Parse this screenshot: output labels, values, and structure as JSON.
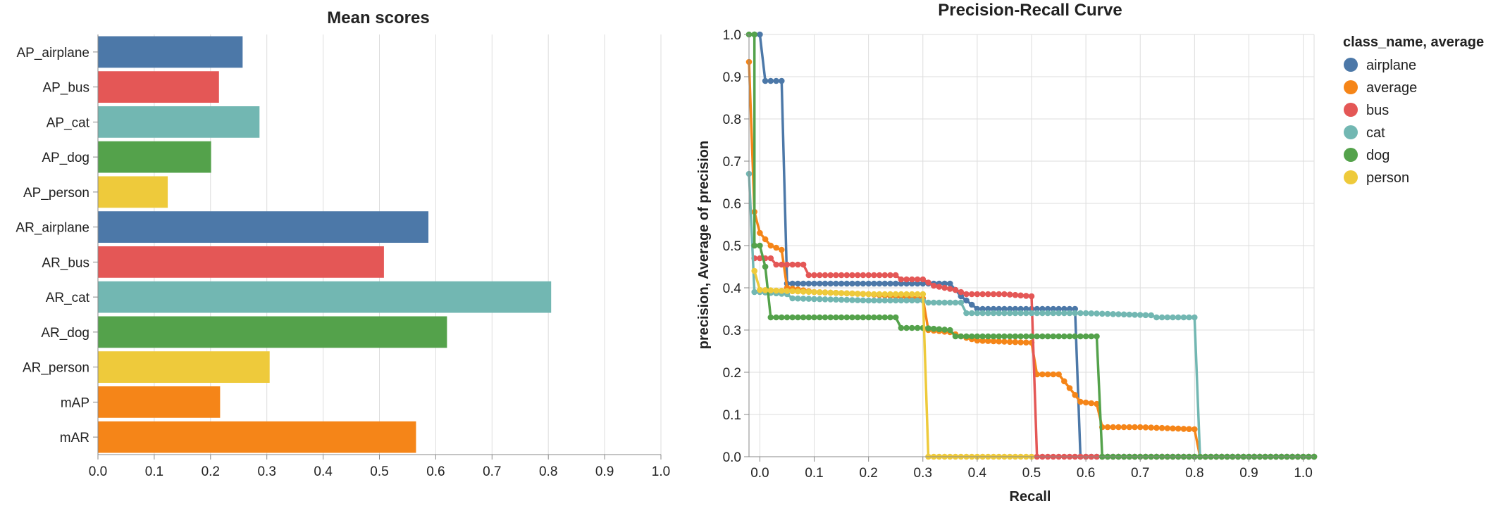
{
  "colors": {
    "airplane": "#4c78a8",
    "average": "#f58518",
    "bus": "#e45756",
    "cat": "#72b7b2",
    "dog": "#54a24b",
    "person": "#eeca3b",
    "grid": "#dddddd",
    "axis": "#888888"
  },
  "chart_data": [
    {
      "type": "bar",
      "orientation": "horizontal",
      "title": "Mean scores",
      "categories": [
        "AP_airplane",
        "AP_bus",
        "AP_cat",
        "AP_dog",
        "AP_person",
        "AR_airplane",
        "AR_bus",
        "AR_cat",
        "AR_dog",
        "AR_person",
        "mAP",
        "mAR"
      ],
      "values": [
        0.257,
        0.215,
        0.287,
        0.201,
        0.124,
        0.587,
        0.508,
        0.805,
        0.62,
        0.305,
        0.217,
        0.565
      ],
      "bar_colors": [
        "airplane",
        "bus",
        "cat",
        "dog",
        "person",
        "airplane",
        "bus",
        "cat",
        "dog",
        "person",
        "average",
        "average"
      ],
      "xlim": [
        0,
        1.0
      ],
      "xticks": [
        "0.0",
        "0.1",
        "0.2",
        "0.3",
        "0.4",
        "0.5",
        "0.6",
        "0.7",
        "0.8",
        "0.9",
        "1.0"
      ],
      "grid": true
    },
    {
      "type": "line",
      "title": "Precision-Recall Curve",
      "xlabel": "Recall",
      "ylabel": "precision, Average of precision",
      "xlim": [
        -0.02,
        1.02
      ],
      "ylim": [
        0,
        1.0
      ],
      "xticks": [
        "0.0",
        "0.1",
        "0.2",
        "0.3",
        "0.4",
        "0.5",
        "0.6",
        "0.7",
        "0.8",
        "0.9",
        "1.0"
      ],
      "yticks": [
        "0.0",
        "0.1",
        "0.2",
        "0.3",
        "0.4",
        "0.5",
        "0.6",
        "0.7",
        "0.8",
        "0.9",
        "1.0"
      ],
      "grid": true,
      "legend_title": "class_name, average",
      "legend_position": "top-right",
      "series": [
        {
          "name": "airplane",
          "color": "airplane",
          "points": [
            [
              -0.01,
              1.0
            ],
            [
              0.0,
              1.0
            ],
            [
              0.01,
              0.89
            ],
            [
              0.04,
              0.89
            ],
            [
              0.05,
              0.41
            ],
            [
              0.1,
              0.41
            ],
            [
              0.2,
              0.41
            ],
            [
              0.3,
              0.41
            ],
            [
              0.35,
              0.41
            ],
            [
              0.37,
              0.38
            ],
            [
              0.4,
              0.35
            ],
            [
              0.5,
              0.35
            ],
            [
              0.58,
              0.35
            ],
            [
              0.59,
              0.0
            ],
            [
              0.7,
              0.0
            ],
            [
              0.8,
              0.0
            ],
            [
              0.9,
              0.0
            ],
            [
              1.0,
              0.0
            ],
            [
              1.02,
              0.0
            ]
          ]
        },
        {
          "name": "average",
          "color": "average",
          "points": [
            [
              -0.02,
              0.935
            ],
            [
              -0.01,
              0.58
            ],
            [
              0.0,
              0.53
            ],
            [
              0.01,
              0.515
            ],
            [
              0.02,
              0.5
            ],
            [
              0.04,
              0.49
            ],
            [
              0.05,
              0.4
            ],
            [
              0.1,
              0.39
            ],
            [
              0.2,
              0.385
            ],
            [
              0.3,
              0.375
            ],
            [
              0.31,
              0.3
            ],
            [
              0.35,
              0.295
            ],
            [
              0.37,
              0.285
            ],
            [
              0.4,
              0.275
            ],
            [
              0.5,
              0.27
            ],
            [
              0.51,
              0.195
            ],
            [
              0.55,
              0.195
            ],
            [
              0.59,
              0.13
            ],
            [
              0.62,
              0.125
            ],
            [
              0.63,
              0.07
            ],
            [
              0.7,
              0.07
            ],
            [
              0.8,
              0.065
            ],
            [
              0.81,
              0.0
            ],
            [
              0.9,
              0.0
            ],
            [
              1.0,
              0.0
            ],
            [
              1.02,
              0.0
            ]
          ]
        },
        {
          "name": "bus",
          "color": "bus",
          "points": [
            [
              -0.01,
              0.47
            ],
            [
              0.0,
              0.47
            ],
            [
              0.02,
              0.47
            ],
            [
              0.03,
              0.455
            ],
            [
              0.08,
              0.455
            ],
            [
              0.09,
              0.43
            ],
            [
              0.2,
              0.43
            ],
            [
              0.25,
              0.43
            ],
            [
              0.26,
              0.42
            ],
            [
              0.3,
              0.42
            ],
            [
              0.32,
              0.405
            ],
            [
              0.36,
              0.395
            ],
            [
              0.38,
              0.385
            ],
            [
              0.45,
              0.385
            ],
            [
              0.5,
              0.38
            ],
            [
              0.51,
              0.0
            ],
            [
              0.6,
              0.0
            ],
            [
              0.7,
              0.0
            ],
            [
              0.8,
              0.0
            ],
            [
              0.9,
              0.0
            ],
            [
              1.0,
              0.0
            ],
            [
              1.02,
              0.0
            ]
          ]
        },
        {
          "name": "cat",
          "color": "cat",
          "points": [
            [
              -0.02,
              0.67
            ],
            [
              -0.01,
              0.39
            ],
            [
              0.0,
              0.39
            ],
            [
              0.05,
              0.385
            ],
            [
              0.06,
              0.375
            ],
            [
              0.2,
              0.37
            ],
            [
              0.3,
              0.37
            ],
            [
              0.31,
              0.365
            ],
            [
              0.37,
              0.365
            ],
            [
              0.38,
              0.34
            ],
            [
              0.5,
              0.34
            ],
            [
              0.6,
              0.34
            ],
            [
              0.72,
              0.335
            ],
            [
              0.73,
              0.33
            ],
            [
              0.8,
              0.33
            ],
            [
              0.81,
              0.0
            ],
            [
              0.9,
              0.0
            ],
            [
              1.0,
              0.0
            ],
            [
              1.02,
              0.0
            ]
          ]
        },
        {
          "name": "dog",
          "color": "dog",
          "points": [
            [
              -0.02,
              1.0
            ],
            [
              -0.01,
              1.0
            ],
            [
              -0.01,
              0.5
            ],
            [
              0.0,
              0.5
            ],
            [
              0.01,
              0.45
            ],
            [
              0.02,
              0.33
            ],
            [
              0.1,
              0.33
            ],
            [
              0.2,
              0.33
            ],
            [
              0.25,
              0.33
            ],
            [
              0.26,
              0.305
            ],
            [
              0.3,
              0.305
            ],
            [
              0.35,
              0.3
            ],
            [
              0.36,
              0.285
            ],
            [
              0.45,
              0.285
            ],
            [
              0.5,
              0.285
            ],
            [
              0.6,
              0.285
            ],
            [
              0.62,
              0.285
            ],
            [
              0.63,
              0.0
            ],
            [
              0.7,
              0.0
            ],
            [
              0.8,
              0.0
            ],
            [
              0.9,
              0.0
            ],
            [
              1.0,
              0.0
            ],
            [
              1.02,
              0.0
            ]
          ]
        },
        {
          "name": "person",
          "color": "person",
          "points": [
            [
              -0.01,
              0.44
            ],
            [
              0.0,
              0.395
            ],
            [
              0.1,
              0.39
            ],
            [
              0.2,
              0.385
            ],
            [
              0.3,
              0.385
            ],
            [
              0.31,
              0.0
            ],
            [
              0.4,
              0.0
            ],
            [
              0.5,
              0.0
            ]
          ]
        }
      ]
    }
  ]
}
